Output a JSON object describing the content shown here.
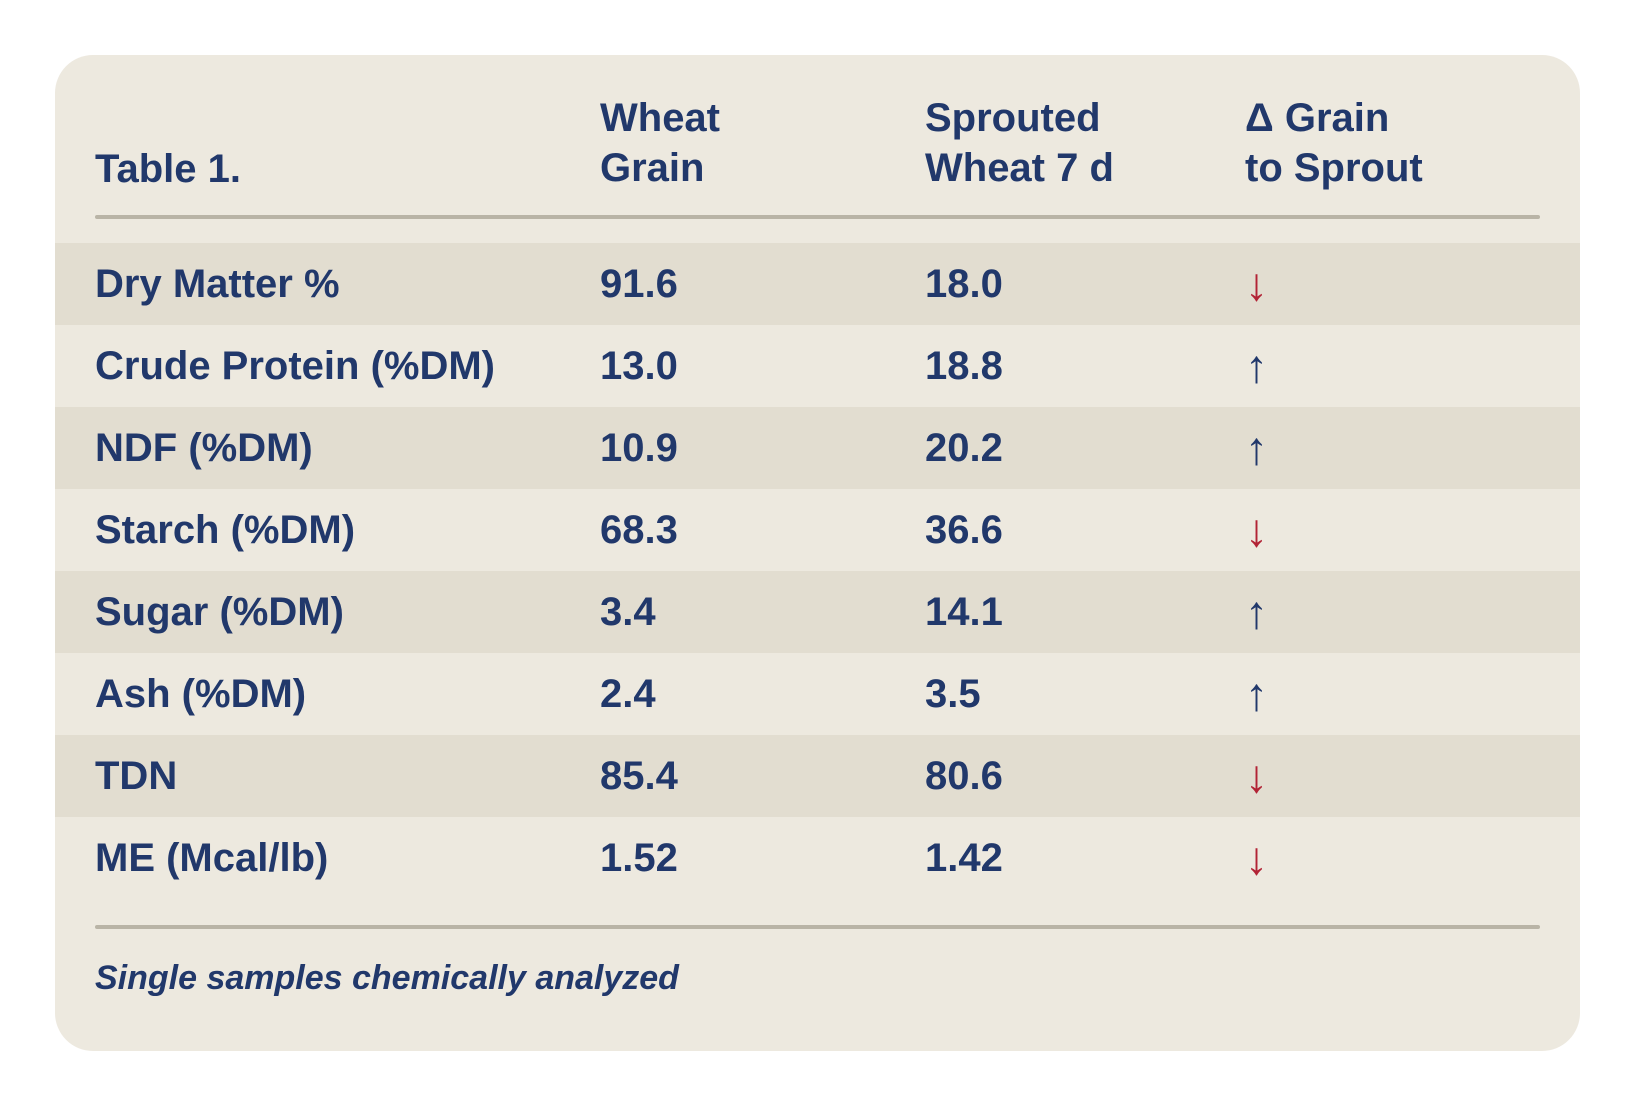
{
  "colors": {
    "card_background": "#EDE9DF",
    "row_stripe": "#E2DDD0",
    "text_navy": "#21386B",
    "arrow_down_red": "#B22335",
    "arrow_up_navy": "#21386B",
    "divider": "#B9B4A6"
  },
  "chart_data": {
    "type": "table",
    "title": "Table 1.",
    "columns": [
      "Wheat\nGrain",
      "Sprouted\nWheat 7 d",
      "Δ Grain\nto Sprout"
    ],
    "rows": [
      {
        "label": "Dry Matter %",
        "wheat_grain": "91.6",
        "sprouted_wheat_7d": "18.0",
        "arrow": "↓",
        "change": "down"
      },
      {
        "label": "Crude Protein (%DM)",
        "wheat_grain": "13.0",
        "sprouted_wheat_7d": "18.8",
        "arrow": "↑",
        "change": "up"
      },
      {
        "label": "NDF (%DM)",
        "wheat_grain": "10.9",
        "sprouted_wheat_7d": "20.2",
        "arrow": "↑",
        "change": "up"
      },
      {
        "label": "Starch (%DM)",
        "wheat_grain": "68.3",
        "sprouted_wheat_7d": "36.6",
        "arrow": "↓",
        "change": "down"
      },
      {
        "label": "Sugar (%DM)",
        "wheat_grain": "3.4",
        "sprouted_wheat_7d": "14.1",
        "arrow": "↑",
        "change": "up"
      },
      {
        "label": "Ash (%DM)",
        "wheat_grain": "2.4",
        "sprouted_wheat_7d": "3.5",
        "arrow": "↑",
        "change": "up"
      },
      {
        "label": "TDN",
        "wheat_grain": "85.4",
        "sprouted_wheat_7d": "80.6",
        "arrow": "↓",
        "change": "down"
      },
      {
        "label": "ME (Mcal/lb)",
        "wheat_grain": "1.52",
        "sprouted_wheat_7d": "1.42",
        "arrow": "↓",
        "change": "down"
      }
    ],
    "footnote": "Single samples chemically analyzed"
  }
}
